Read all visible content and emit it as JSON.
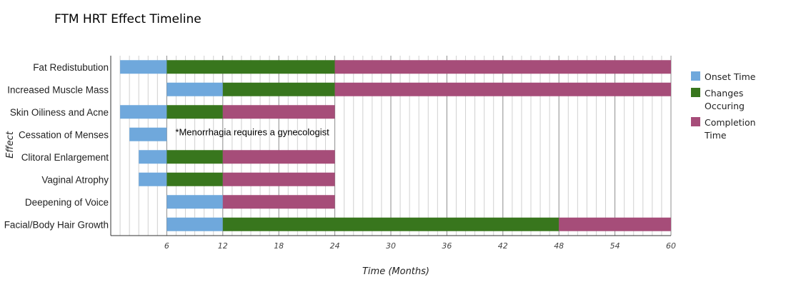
{
  "chart_data": {
    "type": "bar",
    "orientation": "horizontal",
    "stacked": true,
    "title": "FTM HRT Effect Timeline",
    "xlabel": "Time (Months)",
    "ylabel": "Effect",
    "xlim": [
      0,
      60
    ],
    "x_ticks": [
      6,
      12,
      18,
      24,
      30,
      36,
      42,
      48,
      54,
      60
    ],
    "minor_grid_step": 1,
    "grid": true,
    "legend_position": "right",
    "categories": [
      "Fat Redistubution",
      "Increased Muscle Mass",
      "Skin Oiliness and Acne",
      "Cessation of Menses",
      "Clitoral Enlargement",
      "Vaginal Atrophy",
      "Deepening of Voice",
      "Facial/Body Hair Growth"
    ],
    "series": [
      {
        "name": "Onset Time",
        "color": "#6fa8dc",
        "ranges": [
          [
            1,
            6
          ],
          [
            6,
            12
          ],
          [
            1,
            6
          ],
          [
            2,
            6
          ],
          [
            3,
            6
          ],
          [
            3,
            6
          ],
          [
            6,
            12
          ],
          [
            6,
            12
          ]
        ]
      },
      {
        "name": "Changes Occuring",
        "color": "#38761d",
        "ranges": [
          [
            6,
            24
          ],
          [
            12,
            24
          ],
          [
            6,
            12
          ],
          null,
          [
            6,
            12
          ],
          [
            6,
            12
          ],
          null,
          [
            12,
            48
          ]
        ]
      },
      {
        "name": "Completion Time",
        "color": "#a64d79",
        "ranges": [
          [
            24,
            60
          ],
          [
            24,
            60
          ],
          [
            12,
            24
          ],
          null,
          [
            12,
            24
          ],
          [
            12,
            24
          ],
          [
            12,
            24
          ],
          [
            48,
            60
          ]
        ]
      }
    ],
    "annotations": [
      {
        "category": "Cessation of Menses",
        "x": 6,
        "text": "*Menorrhagia requires a gynecologist"
      }
    ]
  }
}
